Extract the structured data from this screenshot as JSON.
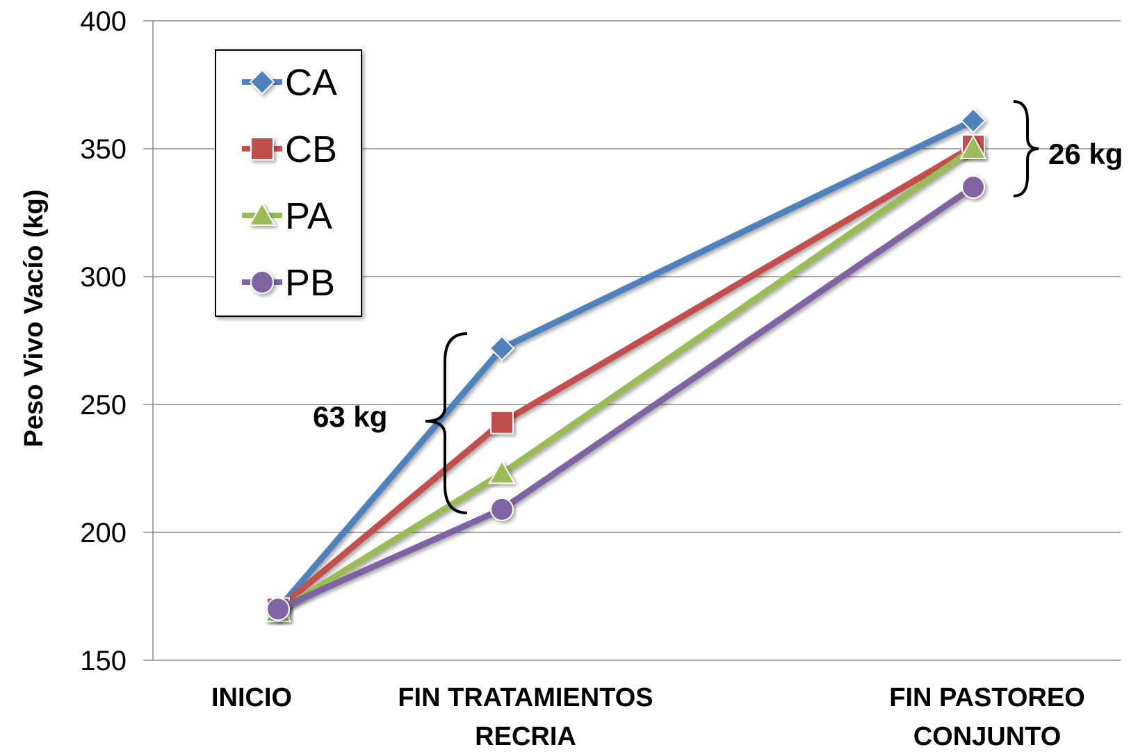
{
  "chart_data": {
    "type": "line",
    "title": "",
    "xlabel": "",
    "ylabel": "Peso Vivo Vacío (kg)",
    "ylim": [
      150,
      400
    ],
    "yticks": [
      150,
      200,
      250,
      300,
      350,
      400
    ],
    "grid": true,
    "legend_position": "top-left",
    "categories": [
      [
        "INICIO"
      ],
      [
        "FIN TRATAMIENTOS",
        "RECRIA"
      ],
      [
        "FIN PASTOREO",
        "CONJUNTO"
      ]
    ],
    "x": [
      0,
      1,
      3
    ],
    "series": [
      {
        "name": "CA",
        "values": [
          170,
          272,
          361
        ],
        "color": "#4f81bd",
        "marker": "diamond"
      },
      {
        "name": "CB",
        "values": [
          170,
          243,
          351
        ],
        "color": "#c0504d",
        "marker": "square"
      },
      {
        "name": "PA",
        "values": [
          169,
          223,
          350
        ],
        "color": "#9bbb59",
        "marker": "triangle"
      },
      {
        "name": "PB",
        "values": [
          170,
          209,
          335
        ],
        "color": "#8064a2",
        "marker": "circle"
      }
    ],
    "annotations": [
      {
        "text": "63 kg",
        "range": [
          209,
          272
        ],
        "at_category": 1
      },
      {
        "text": "26 kg",
        "range": [
          335,
          361
        ],
        "at_category": 2
      }
    ]
  }
}
